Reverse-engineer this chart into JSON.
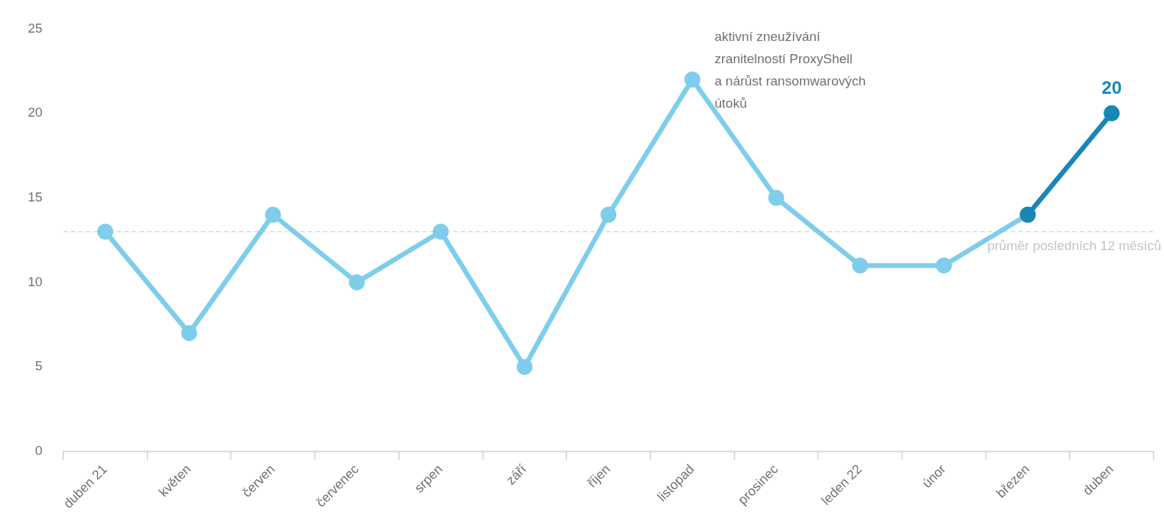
{
  "chart_data": {
    "type": "line",
    "categories": [
      "duben 21",
      "květen",
      "červen",
      "červenec",
      "srpen",
      "září",
      "říjen",
      "listopad",
      "prosinec",
      "leden 22",
      "únor",
      "březen",
      "duben"
    ],
    "series": [
      {
        "color": "#7fcdec",
        "values": [
          13,
          7,
          14,
          10,
          13,
          5,
          14,
          22,
          15,
          11,
          11,
          14,
          null
        ]
      },
      {
        "color": "#1a86b5",
        "values": [
          null,
          null,
          null,
          null,
          null,
          null,
          null,
          null,
          null,
          null,
          null,
          14,
          20
        ],
        "value_labels": [
          null,
          null,
          null,
          null,
          null,
          null,
          null,
          null,
          null,
          null,
          null,
          null,
          "20"
        ]
      }
    ],
    "ylim": [
      0,
      25
    ],
    "yticks": [
      0,
      5,
      10,
      15,
      20,
      25
    ],
    "grid": false,
    "legend": false,
    "marker": "circle",
    "line_style": "solid",
    "ref_lines": [
      {
        "axis": "y",
        "value": 13,
        "label": "průměr posledních 12 měsíců",
        "color": "#d0d5d8",
        "line_style": "dashed"
      }
    ],
    "annotations": [
      {
        "text": "aktivní zneužívání\nzranitelností ProxyShell\na nárůst ransomwarových\nútoků",
        "x": "listopad",
        "y": 22
      }
    ]
  }
}
